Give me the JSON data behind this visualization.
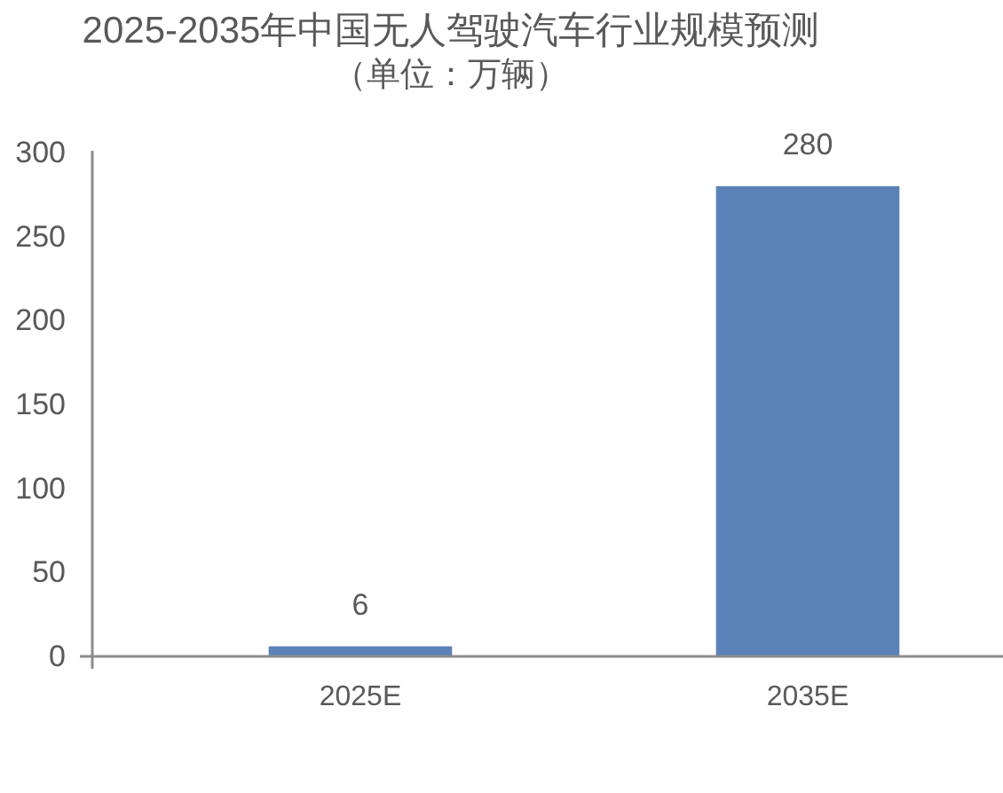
{
  "chart_data": {
    "type": "bar",
    "title": "2025-2035年中国无人驾驶汽车行业规模预测",
    "subtitle": "（单位：万辆）",
    "categories": [
      "2025E",
      "2035E"
    ],
    "values": [
      6,
      280
    ],
    "color": "#5b82b8",
    "ylim": [
      0,
      300
    ],
    "yticks": [
      0,
      50,
      100,
      150,
      200,
      250,
      300
    ],
    "data_labels": true
  }
}
